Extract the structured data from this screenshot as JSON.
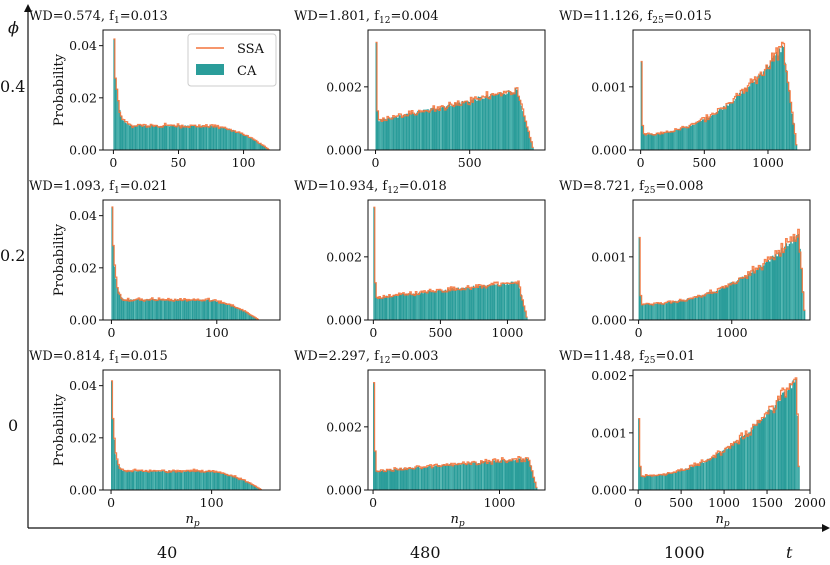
{
  "figure": {
    "outer_x_label": "t",
    "outer_y_label": "ϕ",
    "t_values": [
      "40",
      "480",
      "1000"
    ],
    "phi_values": [
      "0.4",
      "0.2",
      "0"
    ],
    "x_axis_label": "n",
    "x_axis_label_sub": "p",
    "y_axis_label": "Probability",
    "legend": [
      {
        "label": "SSA",
        "color": "#f4743b"
      },
      {
        "label": "CA",
        "color": "#2a9d9a"
      }
    ],
    "colors": {
      "ssa": "#f4743b",
      "ca": "#2a9d9a",
      "ca_light": "#4bb3ae"
    }
  },
  "chart_data": [
    {
      "type": "bar",
      "row": 0,
      "col": 0,
      "title_prefix": "WD=0.574, f",
      "title_sub": "1",
      "title_suffix": "=0.013",
      "shape": "plateau",
      "n_max": 100,
      "peak": 0.042,
      "spike2": 0.028,
      "base": 0.0093,
      "drop": 95,
      "tail": 120,
      "xlim": [
        -8,
        128
      ],
      "ylim": [
        0,
        0.046
      ],
      "xticks": [
        0,
        50,
        100
      ],
      "xtick_labels": [
        "0",
        "50",
        "100"
      ],
      "yticks": [
        0,
        0.02,
        0.04
      ],
      "ytick_labels": [
        "0.00",
        "0.02",
        "0.04"
      ],
      "ylabel": "Probability",
      "xlabel": ""
    },
    {
      "type": "bar",
      "row": 0,
      "col": 1,
      "title_prefix": "WD=1.801, f",
      "title_sub": "12",
      "title_suffix": "=0.004",
      "shape": "ramp",
      "start": 0.0009,
      "end": 0.0019,
      "peak": 0.0035,
      "spike2": 0.0012,
      "end_x": 750,
      "tail": 840,
      "xlim": [
        -40,
        900
      ],
      "ylim": [
        0,
        0.0038
      ],
      "xticks": [
        0,
        500
      ],
      "xtick_labels": [
        "0",
        "500"
      ],
      "yticks": [
        0,
        0.002
      ],
      "ytick_labels": [
        "0.000",
        "0.002"
      ],
      "ylabel": "",
      "xlabel": ""
    },
    {
      "type": "bar",
      "row": 0,
      "col": 2,
      "title_prefix": "WD=11.126, f",
      "title_sub": "25",
      "title_suffix": "=0.015",
      "shape": "ramp_curve",
      "start": 0.00025,
      "end": 0.00165,
      "peak": 0.00135,
      "spike2": 0.0004,
      "end_x": 1120,
      "tail": 1230,
      "xlim": [
        -60,
        1330
      ],
      "ylim": [
        0,
        0.0019
      ],
      "xticks": [
        0,
        500,
        1000
      ],
      "xtick_labels": [
        "0",
        "500",
        "1000"
      ],
      "yticks": [
        0,
        0.001
      ],
      "ytick_labels": [
        "0.000",
        "0.001"
      ],
      "ylabel": "",
      "xlabel": ""
    },
    {
      "type": "bar",
      "row": 1,
      "col": 0,
      "title_prefix": "WD=1.093, f",
      "title_sub": "1",
      "title_suffix": "=0.021",
      "shape": "plateau",
      "n_max": 100,
      "peak": 0.042,
      "spike2": 0.028,
      "base": 0.0078,
      "drop": 110,
      "tail": 140,
      "xlim": [
        -8,
        160
      ],
      "ylim": [
        0,
        0.046
      ],
      "xticks": [
        0,
        100
      ],
      "xtick_labels": [
        "0",
        "100"
      ],
      "yticks": [
        0,
        0.02,
        0.04
      ],
      "ytick_labels": [
        "0.00",
        "0.02",
        "0.04"
      ],
      "ylabel": "Probability",
      "xlabel": ""
    },
    {
      "type": "bar",
      "row": 1,
      "col": 1,
      "title_prefix": "WD=10.934, f",
      "title_sub": "12",
      "title_suffix": "=0.018",
      "shape": "ramp",
      "start": 0.0007,
      "end": 0.0012,
      "peak": 0.0035,
      "spike2": 0.0012,
      "end_x": 1080,
      "tail": 1150,
      "xlim": [
        -40,
        1280
      ],
      "ylim": [
        0,
        0.0038
      ],
      "xticks": [
        0,
        500,
        1000
      ],
      "xtick_labels": [
        "0",
        "500",
        "1000"
      ],
      "yticks": [
        0,
        0.002
      ],
      "ytick_labels": [
        "0.000",
        "0.002"
      ],
      "ylabel": "",
      "xlabel": ""
    },
    {
      "type": "bar",
      "row": 1,
      "col": 2,
      "title_prefix": "WD=8.721, f",
      "title_sub": "25",
      "title_suffix": "=0.008",
      "shape": "ramp_curve",
      "start": 0.00025,
      "end": 0.00135,
      "peak": 0.0013,
      "spike2": 0.0004,
      "end_x": 1720,
      "tail": 1790,
      "xlim": [
        -60,
        1840
      ],
      "ylim": [
        0,
        0.0019
      ],
      "xticks": [
        0,
        1000
      ],
      "xtick_labels": [
        "0",
        "1000"
      ],
      "yticks": [
        0,
        0.001
      ],
      "ytick_labels": [
        "0.000",
        "0.001"
      ],
      "ylabel": "",
      "xlabel": ""
    },
    {
      "type": "bar",
      "row": 2,
      "col": 0,
      "title_prefix": "WD=0.814, f",
      "title_sub": "1",
      "title_suffix": "=0.015",
      "shape": "plateau",
      "n_max": 100,
      "peak": 0.042,
      "spike2": 0.028,
      "base": 0.0073,
      "drop": 115,
      "tail": 150,
      "xlim": [
        -8,
        168
      ],
      "ylim": [
        0,
        0.046
      ],
      "xticks": [
        0,
        100
      ],
      "xtick_labels": [
        "0",
        "100"
      ],
      "yticks": [
        0,
        0.02,
        0.04
      ],
      "ytick_labels": [
        "0.00",
        "0.02",
        "0.04"
      ],
      "ylabel": "Probability",
      "xlabel": "n"
    },
    {
      "type": "bar",
      "row": 2,
      "col": 1,
      "title_prefix": "WD=2.297, f",
      "title_sub": "12",
      "title_suffix": "=0.003",
      "shape": "ramp",
      "start": 0.0006,
      "end": 0.001,
      "peak": 0.0035,
      "spike2": 0.0012,
      "end_x": 1230,
      "tail": 1300,
      "xlim": [
        -40,
        1360
      ],
      "ylim": [
        0,
        0.0038
      ],
      "xticks": [
        0,
        1000
      ],
      "xtick_labels": [
        "0",
        "1000"
      ],
      "yticks": [
        0,
        0.002
      ],
      "ytick_labels": [
        "0.000",
        "0.002"
      ],
      "ylabel": "",
      "xlabel": "n"
    },
    {
      "type": "bar",
      "row": 2,
      "col": 2,
      "title_prefix": "WD=11.48, f",
      "title_sub": "25",
      "title_suffix": "=0.01",
      "shape": "ramp_curve",
      "start": 0.00025,
      "end": 0.00195,
      "peak": 0.00125,
      "spike2": 0.0004,
      "end_x": 1840,
      "tail": 1880,
      "xlim": [
        -60,
        2000
      ],
      "ylim": [
        0,
        0.0021
      ],
      "xticks": [
        0,
        500,
        1000,
        1500,
        2000
      ],
      "xtick_labels": [
        "0",
        "500",
        "1000",
        "1500",
        "2000"
      ],
      "yticks": [
        0,
        0.001,
        0.002
      ],
      "ytick_labels": [
        "0.000",
        "0.001",
        "0.002"
      ],
      "ylabel": "",
      "xlabel": "n"
    }
  ]
}
